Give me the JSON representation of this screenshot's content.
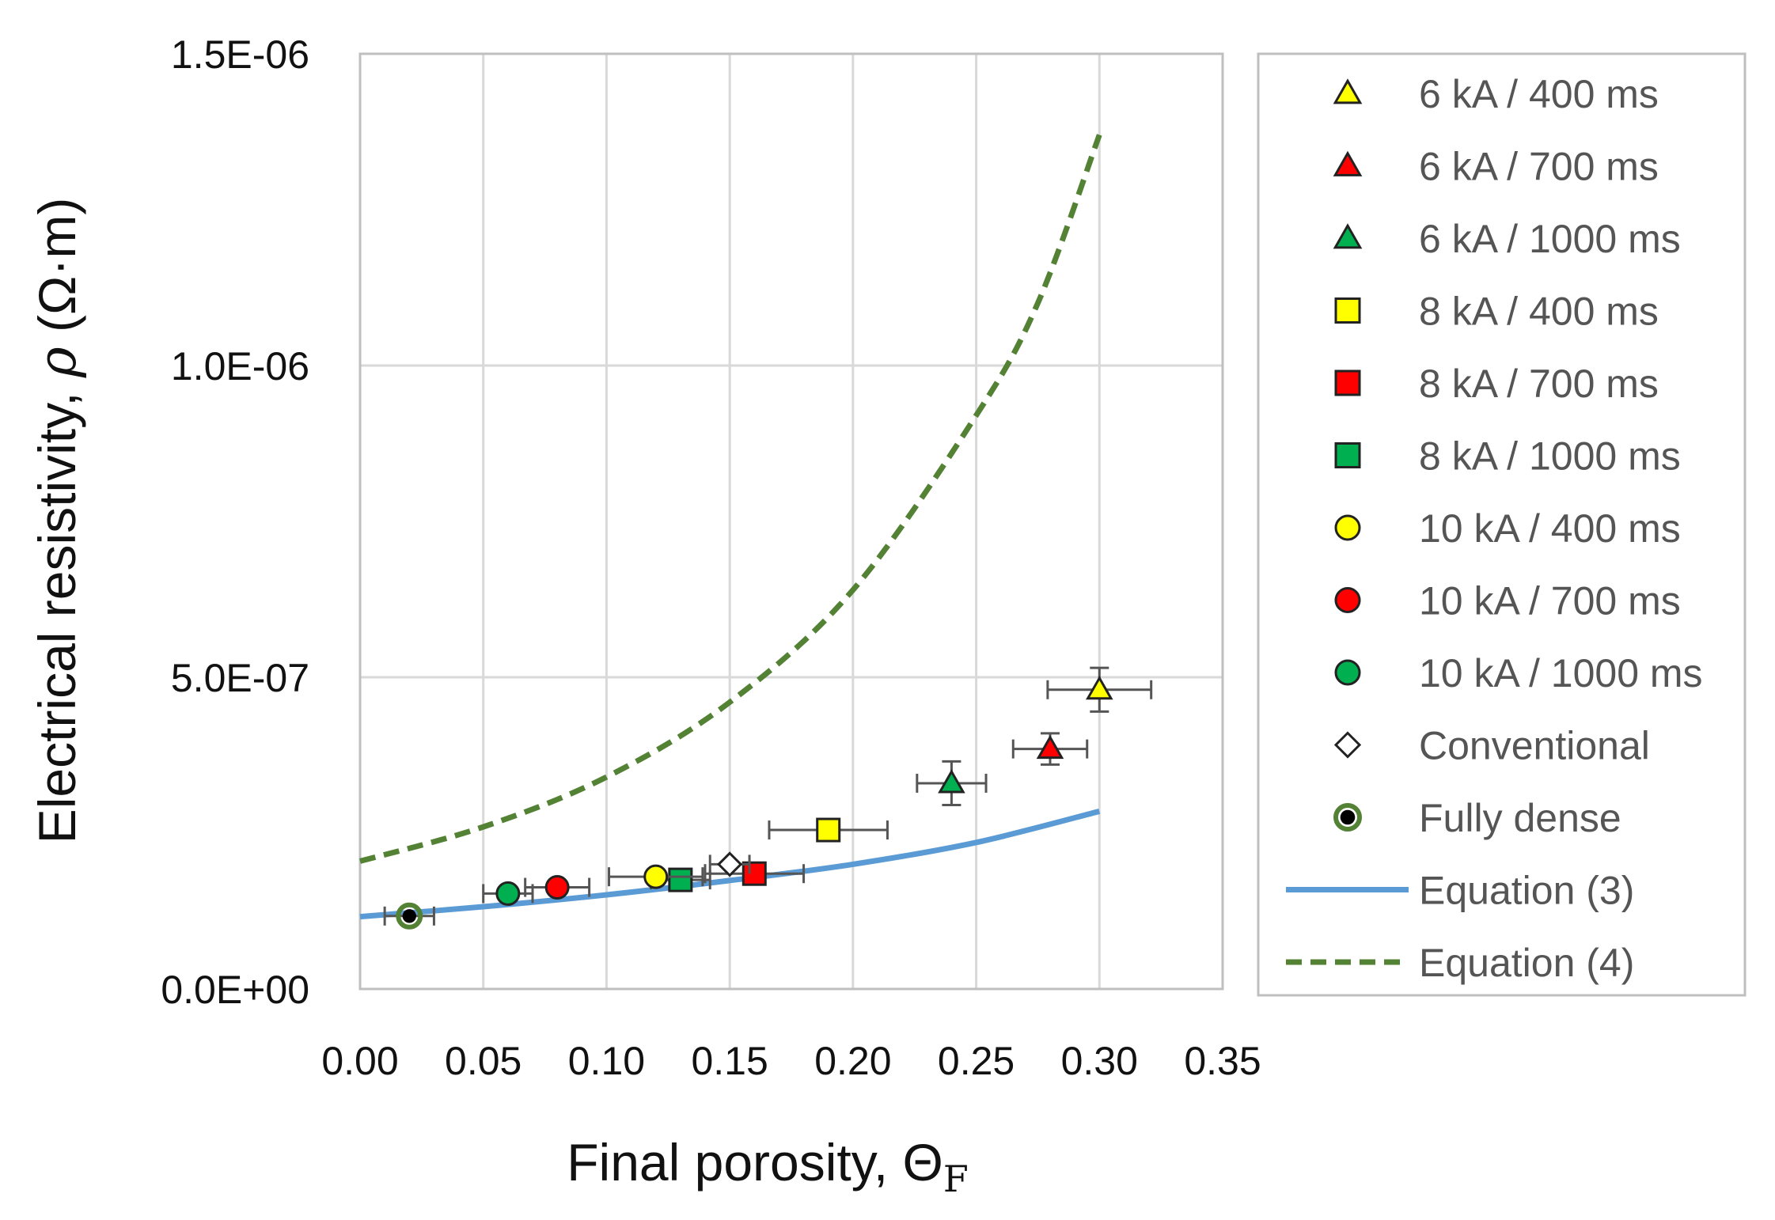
{
  "chart_data": {
    "type": "scatter",
    "title": "",
    "xlabel": "Final porosity, ΘF",
    "xlabel_main": "Final porosity, Θ",
    "xlabel_sub": "F",
    "ylabel": "Electrical resistivity, ρ (Ω·m)",
    "ylabel_main": "Electrical resistivity, ",
    "ylabel_rho": "ρ",
    "ylabel_unit": " (Ω·m)",
    "xlim": [
      0,
      0.35
    ],
    "ylim": [
      0,
      1.5e-06
    ],
    "xticks": [
      0,
      0.05,
      0.1,
      0.15,
      0.2,
      0.25,
      0.3,
      0.35
    ],
    "xtick_labels": [
      "0.00",
      "0.05",
      "0.10",
      "0.15",
      "0.20",
      "0.25",
      "0.30",
      "0.35"
    ],
    "yticks": [
      0,
      5e-07,
      1e-06,
      1.5e-06
    ],
    "ytick_labels": [
      "0.0E+00",
      "5.0E-07",
      "1.0E-06",
      "1.5E-06"
    ],
    "grid": true,
    "legend_position": "right",
    "series": [
      {
        "name": "6 kA / 400 ms",
        "marker": "triangle",
        "color": "#ffff00",
        "x": 0.3,
        "y": 4.8e-07,
        "xerr": 0.021,
        "yerr": 3.5e-08
      },
      {
        "name": "6 kA / 700 ms",
        "marker": "triangle",
        "color": "#ff0000",
        "x": 0.28,
        "y": 3.85e-07,
        "xerr": 0.015,
        "yerr": 2.5e-08
      },
      {
        "name": "6 kA / 1000 ms",
        "marker": "triangle",
        "color": "#00b050",
        "x": 0.24,
        "y": 3.3e-07,
        "xerr": 0.014,
        "yerr": 3.5e-08
      },
      {
        "name": "8 kA / 400 ms",
        "marker": "square",
        "color": "#ffff00",
        "x": 0.19,
        "y": 2.55e-07,
        "xerr": 0.024,
        "yerr": 0
      },
      {
        "name": "8 kA / 700 ms",
        "marker": "square",
        "color": "#ff0000",
        "x": 0.16,
        "y": 1.85e-07,
        "xerr": 0.02,
        "yerr": 0
      },
      {
        "name": "8 kA / 1000 ms",
        "marker": "square",
        "color": "#00b050",
        "x": 0.13,
        "y": 1.75e-07,
        "xerr": 0.012,
        "yerr": 0
      },
      {
        "name": "10 kA / 400 ms",
        "marker": "circle",
        "color": "#ffff00",
        "x": 0.12,
        "y": 1.8e-07,
        "xerr": 0.019,
        "yerr": 0
      },
      {
        "name": "10 kA / 700 ms",
        "marker": "circle",
        "color": "#ff0000",
        "x": 0.08,
        "y": 1.63e-07,
        "xerr": 0.013,
        "yerr": 0
      },
      {
        "name": "10 kA / 1000 ms",
        "marker": "circle",
        "color": "#00b050",
        "x": 0.06,
        "y": 1.53e-07,
        "xerr": 0.01,
        "yerr": 0
      },
      {
        "name": "Conventional",
        "marker": "diamond",
        "color": "#ffffff",
        "x": 0.15,
        "y": 2e-07,
        "xerr": 0.008,
        "yerr": 0
      },
      {
        "name": "Fully dense",
        "marker": "dot",
        "color": "#000000",
        "ring": "#548235",
        "x": 0.02,
        "y": 1.17e-07,
        "xerr": 0.01,
        "yerr": 0
      }
    ],
    "lines": [
      {
        "name": "Equation (3)",
        "style": "solid",
        "color": "#5b9bd5",
        "x": [
          0,
          0.05,
          0.1,
          0.15,
          0.2,
          0.25,
          0.3
        ],
        "y": [
          1.16e-07,
          1.32e-07,
          1.51e-07,
          1.74e-07,
          2e-07,
          2.35e-07,
          2.85e-07
        ]
      },
      {
        "name": "Equation (4)",
        "style": "dashed",
        "color": "#548235",
        "x": [
          0,
          0.05,
          0.1,
          0.15,
          0.2,
          0.25,
          0.275,
          0.3
        ],
        "y": [
          2.05e-07,
          2.6e-07,
          3.4e-07,
          4.6e-07,
          6.4e-07,
          9.2e-07,
          1.1e-06,
          1.37e-06
        ]
      }
    ]
  }
}
